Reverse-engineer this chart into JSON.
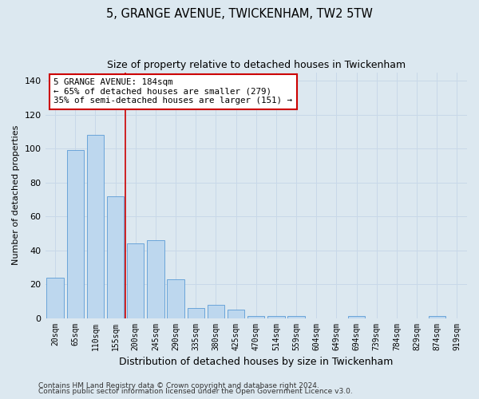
{
  "title": "5, GRANGE AVENUE, TWICKENHAM, TW2 5TW",
  "subtitle": "Size of property relative to detached houses in Twickenham",
  "xlabel": "Distribution of detached houses by size in Twickenham",
  "ylabel": "Number of detached properties",
  "bar_labels": [
    "20sqm",
    "65sqm",
    "110sqm",
    "155sqm",
    "200sqm",
    "245sqm",
    "290sqm",
    "335sqm",
    "380sqm",
    "425sqm",
    "470sqm",
    "514sqm",
    "559sqm",
    "604sqm",
    "649sqm",
    "694sqm",
    "739sqm",
    "784sqm",
    "829sqm",
    "874sqm",
    "919sqm"
  ],
  "bar_values": [
    24,
    99,
    108,
    72,
    44,
    46,
    23,
    6,
    8,
    5,
    1,
    1,
    1,
    0,
    0,
    1,
    0,
    0,
    0,
    1,
    0
  ],
  "bar_color": "#bdd7ee",
  "bar_edge_color": "#5b9bd5",
  "grid_color": "#c8d8e8",
  "background_color": "#dce8f0",
  "vline_color": "#cc0000",
  "annotation_text": "5 GRANGE AVENUE: 184sqm\n← 65% of detached houses are smaller (279)\n35% of semi-detached houses are larger (151) →",
  "annotation_box_color": "#ffffff",
  "annotation_box_edge": "#cc0000",
  "ylim": [
    0,
    145
  ],
  "yticks": [
    0,
    20,
    40,
    60,
    80,
    100,
    120,
    140
  ],
  "footer1": "Contains HM Land Registry data © Crown copyright and database right 2024.",
  "footer2": "Contains public sector information licensed under the Open Government Licence v3.0."
}
